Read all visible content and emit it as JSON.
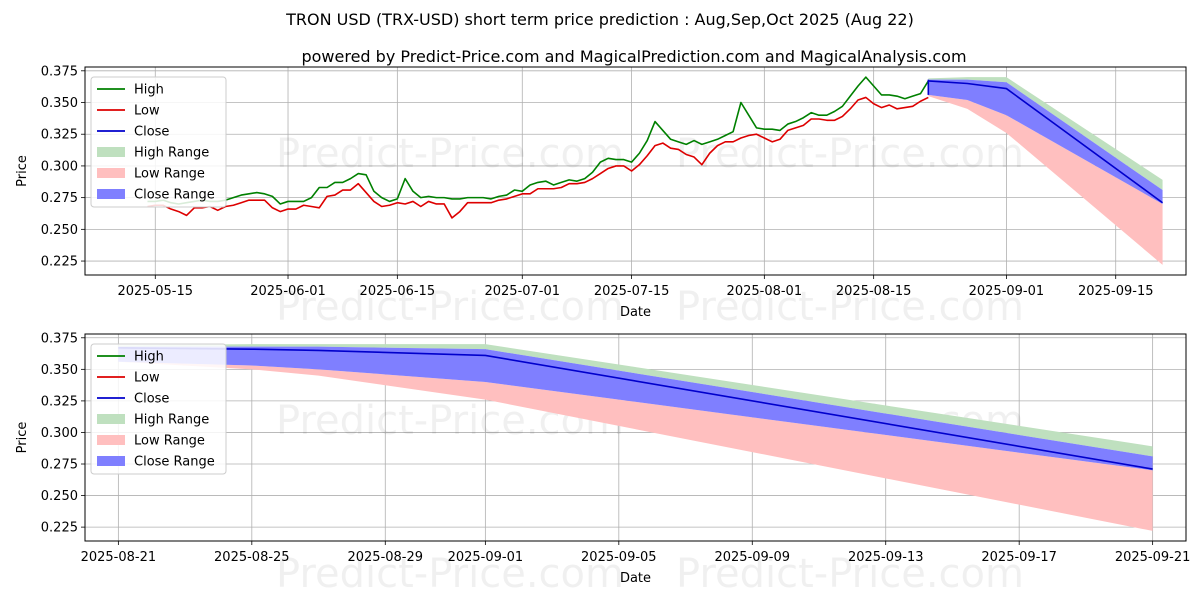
{
  "figure": {
    "title": "TRON USD (TRX-USD) short term price prediction : Aug,Sep,Oct 2025 (Aug 22)",
    "subtitle": "powered by Predict-Price.com and MagicalPrediction.com and MagicalAnalysis.com",
    "watermark": "Predict-Price.com"
  },
  "colors": {
    "high": "#008000",
    "low": "#dd0000",
    "close": "#0000cc",
    "high_range": "#bfe0bf",
    "low_range": "#ffbfbf",
    "close_range": "#7f7fff",
    "grid": "#b0b0b0"
  },
  "chart_data": [
    {
      "type": "line",
      "xlabel": "Date",
      "ylabel": "Price",
      "xlim": [
        "2025-05-06",
        "2025-09-24"
      ],
      "ylim": [
        0.214,
        0.378
      ],
      "grid": true,
      "legend_position": "top-left",
      "x_ticks": [
        "2025-05-15",
        "2025-06-01",
        "2025-06-15",
        "2025-07-01",
        "2025-07-15",
        "2025-08-01",
        "2025-08-15",
        "2025-09-01",
        "2025-09-15"
      ],
      "y_ticks": [
        "0.225",
        "0.250",
        "0.275",
        "0.300",
        "0.325",
        "0.350",
        "0.375"
      ],
      "legend": [
        "High",
        "Low",
        "Close",
        "High Range",
        "Low Range",
        "Close Range"
      ],
      "history": {
        "dates": [
          "2025-05-14",
          "2025-05-15",
          "2025-05-16",
          "2025-05-17",
          "2025-05-18",
          "2025-05-19",
          "2025-05-20",
          "2025-05-21",
          "2025-05-22",
          "2025-05-23",
          "2025-05-24",
          "2025-05-25",
          "2025-05-26",
          "2025-05-27",
          "2025-05-28",
          "2025-05-29",
          "2025-05-30",
          "2025-05-31",
          "2025-06-01",
          "2025-06-02",
          "2025-06-03",
          "2025-06-04",
          "2025-06-05",
          "2025-06-06",
          "2025-06-07",
          "2025-06-08",
          "2025-06-09",
          "2025-06-10",
          "2025-06-11",
          "2025-06-12",
          "2025-06-13",
          "2025-06-14",
          "2025-06-15",
          "2025-06-16",
          "2025-06-17",
          "2025-06-18",
          "2025-06-19",
          "2025-06-20",
          "2025-06-21",
          "2025-06-22",
          "2025-06-23",
          "2025-06-24",
          "2025-06-25",
          "2025-06-26",
          "2025-06-27",
          "2025-06-28",
          "2025-06-29",
          "2025-06-30",
          "2025-07-01",
          "2025-07-02",
          "2025-07-03",
          "2025-07-04",
          "2025-07-05",
          "2025-07-06",
          "2025-07-07",
          "2025-07-08",
          "2025-07-09",
          "2025-07-10",
          "2025-07-11",
          "2025-07-12",
          "2025-07-13",
          "2025-07-14",
          "2025-07-15",
          "2025-07-16",
          "2025-07-17",
          "2025-07-18",
          "2025-07-19",
          "2025-07-20",
          "2025-07-21",
          "2025-07-22",
          "2025-07-23",
          "2025-07-24",
          "2025-07-25",
          "2025-07-26",
          "2025-07-27",
          "2025-07-28",
          "2025-07-29",
          "2025-07-30",
          "2025-07-31",
          "2025-08-01",
          "2025-08-02",
          "2025-08-03",
          "2025-08-04",
          "2025-08-05",
          "2025-08-06",
          "2025-08-07",
          "2025-08-08",
          "2025-08-09",
          "2025-08-10",
          "2025-08-11",
          "2025-08-12",
          "2025-08-13",
          "2025-08-14",
          "2025-08-15",
          "2025-08-16",
          "2025-08-17",
          "2025-08-18",
          "2025-08-19",
          "2025-08-20",
          "2025-08-21",
          "2025-08-22"
        ],
        "high": [
          0.272,
          0.272,
          0.273,
          0.271,
          0.27,
          0.271,
          0.272,
          0.273,
          0.272,
          0.272,
          0.273,
          0.275,
          0.277,
          0.278,
          0.279,
          0.278,
          0.276,
          0.27,
          0.272,
          0.272,
          0.272,
          0.275,
          0.283,
          0.283,
          0.287,
          0.287,
          0.29,
          0.294,
          0.293,
          0.28,
          0.275,
          0.272,
          0.274,
          0.29,
          0.28,
          0.275,
          0.276,
          0.275,
          0.275,
          0.274,
          0.274,
          0.275,
          0.275,
          0.275,
          0.274,
          0.276,
          0.277,
          0.281,
          0.28,
          0.285,
          0.287,
          0.288,
          0.285,
          0.287,
          0.289,
          0.288,
          0.29,
          0.295,
          0.303,
          0.306,
          0.305,
          0.305,
          0.303,
          0.31,
          0.32,
          0.335,
          0.328,
          0.321,
          0.319,
          0.317,
          0.32,
          0.317,
          0.319,
          0.321,
          0.324,
          0.327,
          0.35,
          0.34,
          0.33,
          0.329,
          0.329,
          0.328,
          0.333,
          0.335,
          0.338,
          0.342,
          0.34,
          0.34,
          0.343,
          0.347,
          0.355,
          0.363,
          0.37,
          0.363,
          0.356,
          0.356,
          0.355,
          0.353,
          0.355,
          0.357,
          0.367
        ],
        "low": [
          0.268,
          0.269,
          0.269,
          0.266,
          0.264,
          0.261,
          0.267,
          0.267,
          0.268,
          0.265,
          0.268,
          0.269,
          0.271,
          0.273,
          0.273,
          0.273,
          0.267,
          0.264,
          0.266,
          0.266,
          0.269,
          0.268,
          0.267,
          0.276,
          0.277,
          0.281,
          0.281,
          0.286,
          0.279,
          0.272,
          0.268,
          0.269,
          0.271,
          0.27,
          0.272,
          0.268,
          0.272,
          0.27,
          0.27,
          0.259,
          0.264,
          0.271,
          0.271,
          0.271,
          0.271,
          0.273,
          0.274,
          0.276,
          0.278,
          0.278,
          0.282,
          0.282,
          0.282,
          0.283,
          0.286,
          0.286,
          0.287,
          0.29,
          0.294,
          0.298,
          0.3,
          0.3,
          0.296,
          0.301,
          0.308,
          0.316,
          0.318,
          0.314,
          0.313,
          0.309,
          0.307,
          0.301,
          0.31,
          0.316,
          0.319,
          0.319,
          0.322,
          0.324,
          0.325,
          0.322,
          0.319,
          0.321,
          0.328,
          0.33,
          0.332,
          0.337,
          0.337,
          0.336,
          0.336,
          0.339,
          0.345,
          0.352,
          0.354,
          0.349,
          0.346,
          0.348,
          0.345,
          0.346,
          0.347,
          0.351,
          0.354
        ]
      },
      "forecast": {
        "dates": [
          "2025-08-22",
          "2025-08-27",
          "2025-09-01",
          "2025-09-21"
        ],
        "close": [
          0.367,
          0.365,
          0.361,
          0.271
        ],
        "close_range_upper": [
          0.368,
          0.368,
          0.366,
          0.281
        ],
        "close_range_lower": [
          0.356,
          0.352,
          0.34,
          0.27
        ],
        "high_range_upper": [
          0.369,
          0.37,
          0.37,
          0.289
        ],
        "low_range_lower": [
          0.355,
          0.345,
          0.326,
          0.222
        ]
      }
    },
    {
      "type": "line",
      "xlabel": "Date",
      "ylabel": "Price",
      "xlim": [
        "2025-08-20",
        "2025-09-22"
      ],
      "ylim": [
        0.214,
        0.378
      ],
      "grid": true,
      "legend_position": "top-left",
      "x_ticks": [
        "2025-08-21",
        "2025-08-25",
        "2025-08-29",
        "2025-09-01",
        "2025-09-05",
        "2025-09-09",
        "2025-09-13",
        "2025-09-17",
        "2025-09-21"
      ],
      "y_ticks": [
        "0.225",
        "0.250",
        "0.275",
        "0.300",
        "0.325",
        "0.350",
        "0.375"
      ],
      "legend": [
        "High",
        "Low",
        "Close",
        "High Range",
        "Low Range",
        "Close Range"
      ],
      "forecast": {
        "dates": [
          "2025-08-21",
          "2025-08-25",
          "2025-08-27",
          "2025-09-01",
          "2025-09-21"
        ],
        "close": [
          0.367,
          0.366,
          0.365,
          0.361,
          0.271
        ],
        "close_range_upper": [
          0.368,
          0.368,
          0.368,
          0.366,
          0.281
        ],
        "close_range_lower": [
          0.356,
          0.353,
          0.35,
          0.34,
          0.27
        ],
        "high_range_upper": [
          0.369,
          0.37,
          0.37,
          0.37,
          0.289
        ],
        "low_range_lower": [
          0.356,
          0.35,
          0.345,
          0.326,
          0.222
        ]
      }
    }
  ]
}
